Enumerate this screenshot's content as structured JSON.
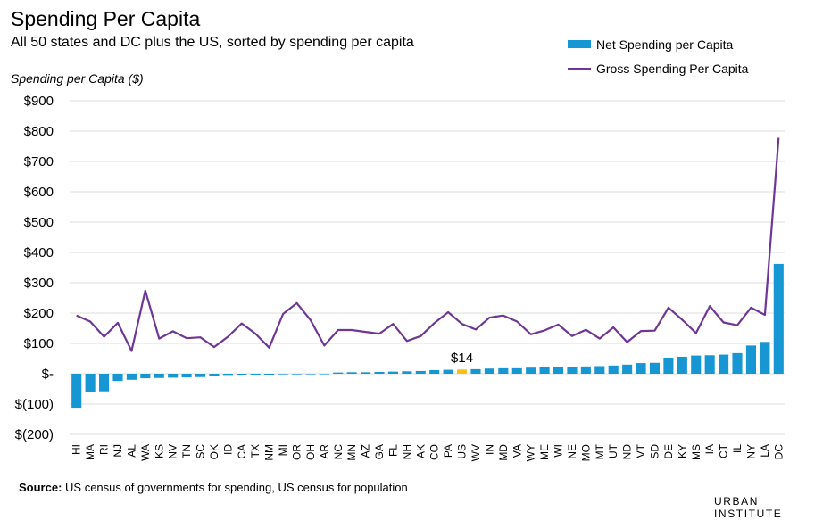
{
  "chart_data": {
    "type": "bar",
    "title": "Spending Per Capita",
    "subtitle": "All 50 states and DC plus the US, sorted by spending per capita",
    "ylabel": "Spending per Capita ($)",
    "ylim": [
      -200,
      900
    ],
    "yticks": [
      -200,
      -100,
      0,
      100,
      200,
      300,
      400,
      500,
      600,
      700,
      800,
      900
    ],
    "ytick_labels": [
      "$(200)",
      "$(100)",
      "$-",
      "$100",
      "$200",
      "$300",
      "$400",
      "$500",
      "$600",
      "$700",
      "$800",
      "$900"
    ],
    "grid": true,
    "legend_position": "top-right",
    "categories": [
      "HI",
      "MA",
      "RI",
      "NJ",
      "AL",
      "WA",
      "KS",
      "NV",
      "TN",
      "SC",
      "OK",
      "ID",
      "CA",
      "TX",
      "NM",
      "MI",
      "OR",
      "OH",
      "AR",
      "NC",
      "MN",
      "AZ",
      "GA",
      "FL",
      "NH",
      "AK",
      "CO",
      "PA",
      "US",
      "WV",
      "IN",
      "MD",
      "VA",
      "WY",
      "ME",
      "WI",
      "NE",
      "MO",
      "MT",
      "UT",
      "ND",
      "VT",
      "SD",
      "DE",
      "KY",
      "MS",
      "IA",
      "CT",
      "IL",
      "NY",
      "LA",
      "DC"
    ],
    "series": [
      {
        "name": "Net Spending per Capita",
        "type": "bar",
        "color": "#1696d2",
        "values": [
          -112,
          -60,
          -58,
          -24,
          -20,
          -15,
          -14,
          -13,
          -12,
          -11,
          -6,
          -4,
          -3,
          -3,
          -3,
          -2,
          -2,
          -1,
          0,
          4,
          5,
          5,
          6,
          7,
          8,
          9,
          12,
          13,
          14,
          15,
          17,
          18,
          18,
          20,
          21,
          22,
          23,
          24,
          25,
          27,
          30,
          35,
          36,
          53,
          56,
          60,
          61,
          63,
          68,
          93,
          105,
          362
        ],
        "highlight": {
          "index": 28,
          "color": "#fdbf11",
          "label": "$14"
        }
      },
      {
        "name": "Gross Spending Per Capita",
        "type": "line",
        "color": "#6f3795",
        "values": [
          192,
          172,
          122,
          168,
          75,
          274,
          116,
          140,
          117,
          120,
          88,
          122,
          166,
          132,
          86,
          197,
          233,
          177,
          93,
          144,
          144,
          138,
          132,
          164,
          108,
          124,
          167,
          203,
          164,
          146,
          185,
          192,
          172,
          130,
          143,
          162,
          124,
          145,
          116,
          153,
          104,
          141,
          142,
          218,
          178,
          134,
          223,
          169,
          160,
          218,
          194,
          778
        ]
      }
    ]
  },
  "source": {
    "label": "Source:",
    "text": " US census of governments for spending, US census for population"
  },
  "branding": "URBAN INSTITUTE"
}
